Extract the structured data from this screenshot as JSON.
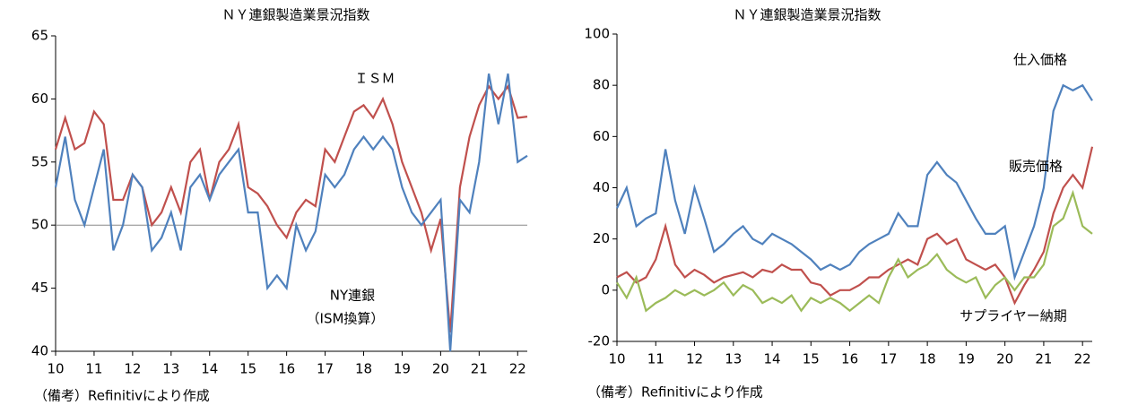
{
  "chart_data": [
    {
      "type": "line",
      "title": "ＮＹ連銀製造業景況指数",
      "x": [
        10,
        10.25,
        10.5,
        10.75,
        11,
        11.25,
        11.5,
        11.75,
        12,
        12.25,
        12.5,
        12.75,
        13,
        13.25,
        13.5,
        13.75,
        14,
        14.25,
        14.5,
        14.75,
        15,
        15.25,
        15.5,
        15.75,
        16,
        16.25,
        16.5,
        16.75,
        17,
        17.25,
        17.5,
        17.75,
        18,
        18.25,
        18.5,
        18.75,
        19,
        19.25,
        19.5,
        19.75,
        20,
        20.25,
        20.5,
        20.75,
        21,
        21.25,
        21.5,
        21.75,
        22,
        22.25
      ],
      "xlim": [
        10,
        22.25
      ],
      "xticks": [
        10,
        11,
        12,
        13,
        14,
        15,
        16,
        17,
        18,
        19,
        20,
        21,
        22
      ],
      "ylim": [
        40,
        65
      ],
      "yticks": [
        40,
        45,
        50,
        55,
        60,
        65
      ],
      "hline": 50,
      "series": [
        {
          "name": "ＩＳＭ",
          "color": "#c0504d",
          "values": [
            56,
            58.5,
            56,
            56.5,
            59,
            58,
            52,
            52,
            54,
            53,
            50,
            51,
            53,
            51,
            55,
            56,
            52,
            55,
            56,
            58,
            53,
            52.5,
            51.5,
            50,
            49,
            51,
            52,
            51.5,
            56,
            55,
            57,
            59,
            59.5,
            58.5,
            60,
            58,
            55,
            53,
            51,
            48,
            50.5,
            41.5,
            53,
            57,
            59.5,
            61,
            60,
            61,
            58.5,
            58.6
          ]
        },
        {
          "name": "NY連銀（ISM換算）",
          "color": "#4f81bd",
          "values": [
            53,
            57,
            52,
            50,
            53,
            56,
            48,
            50,
            54,
            53,
            48,
            49,
            51,
            48,
            53,
            54,
            52,
            54,
            55,
            56,
            51,
            51,
            45,
            46,
            45,
            50,
            48,
            49.5,
            54,
            53,
            54,
            56,
            57,
            56,
            57,
            56,
            53,
            51,
            50,
            51,
            52,
            40,
            52,
            51,
            55,
            62,
            58,
            62,
            55,
            55.5
          ]
        }
      ],
      "annotations": [
        {
          "text": "ＩＳＭ",
          "color": "#c0504d"
        },
        {
          "text": "NY連銀",
          "color": "#4f81bd"
        },
        {
          "text": "（ISM換算）",
          "color": "#4f81bd"
        }
      ],
      "note": "（備考）Refinitivにより作成"
    },
    {
      "type": "line",
      "title": "ＮＹ連銀製造業景況指数",
      "x": [
        10,
        10.25,
        10.5,
        10.75,
        11,
        11.25,
        11.5,
        11.75,
        12,
        12.25,
        12.5,
        12.75,
        13,
        13.25,
        13.5,
        13.75,
        14,
        14.25,
        14.5,
        14.75,
        15,
        15.25,
        15.5,
        15.75,
        16,
        16.25,
        16.5,
        16.75,
        17,
        17.25,
        17.5,
        17.75,
        18,
        18.25,
        18.5,
        18.75,
        19,
        19.25,
        19.5,
        19.75,
        20,
        20.25,
        20.5,
        20.75,
        21,
        21.25,
        21.5,
        21.75,
        22,
        22.25
      ],
      "xlim": [
        10,
        22.25
      ],
      "xticks": [
        10,
        11,
        12,
        13,
        14,
        15,
        16,
        17,
        18,
        19,
        20,
        21,
        22
      ],
      "ylim": [
        -20,
        100
      ],
      "yticks": [
        -20,
        0,
        20,
        40,
        60,
        80,
        100
      ],
      "series": [
        {
          "name": "仕入価格",
          "color": "#4f81bd",
          "values": [
            32,
            40,
            25,
            28,
            30,
            55,
            35,
            22,
            40,
            28,
            15,
            18,
            22,
            25,
            20,
            18,
            22,
            20,
            18,
            15,
            12,
            8,
            10,
            8,
            10,
            15,
            18,
            20,
            22,
            30,
            25,
            25,
            45,
            50,
            45,
            42,
            35,
            28,
            22,
            22,
            25,
            5,
            15,
            25,
            40,
            70,
            80,
            78,
            80,
            74
          ]
        },
        {
          "name": "販売価格",
          "color": "#c0504d",
          "values": [
            5,
            7,
            3,
            5,
            12,
            25,
            10,
            5,
            8,
            6,
            3,
            5,
            6,
            7,
            5,
            8,
            7,
            10,
            8,
            8,
            3,
            2,
            -2,
            0,
            0,
            2,
            5,
            5,
            8,
            10,
            12,
            10,
            20,
            22,
            18,
            20,
            12,
            10,
            8,
            10,
            5,
            -5,
            2,
            8,
            15,
            30,
            40,
            45,
            40,
            56
          ]
        },
        {
          "name": "サプライヤー納期",
          "color": "#9bbb59",
          "values": [
            3,
            -3,
            5,
            -8,
            -5,
            -3,
            0,
            -2,
            0,
            -2,
            0,
            3,
            -2,
            2,
            0,
            -5,
            -3,
            -5,
            -2,
            -8,
            -3,
            -5,
            -3,
            -5,
            -8,
            -5,
            -2,
            -5,
            5,
            12,
            5,
            8,
            10,
            14,
            8,
            5,
            3,
            5,
            -3,
            2,
            5,
            0,
            5,
            5,
            10,
            25,
            28,
            38,
            25,
            22
          ]
        }
      ],
      "note": "（備考）Refinitivにより作成"
    }
  ]
}
